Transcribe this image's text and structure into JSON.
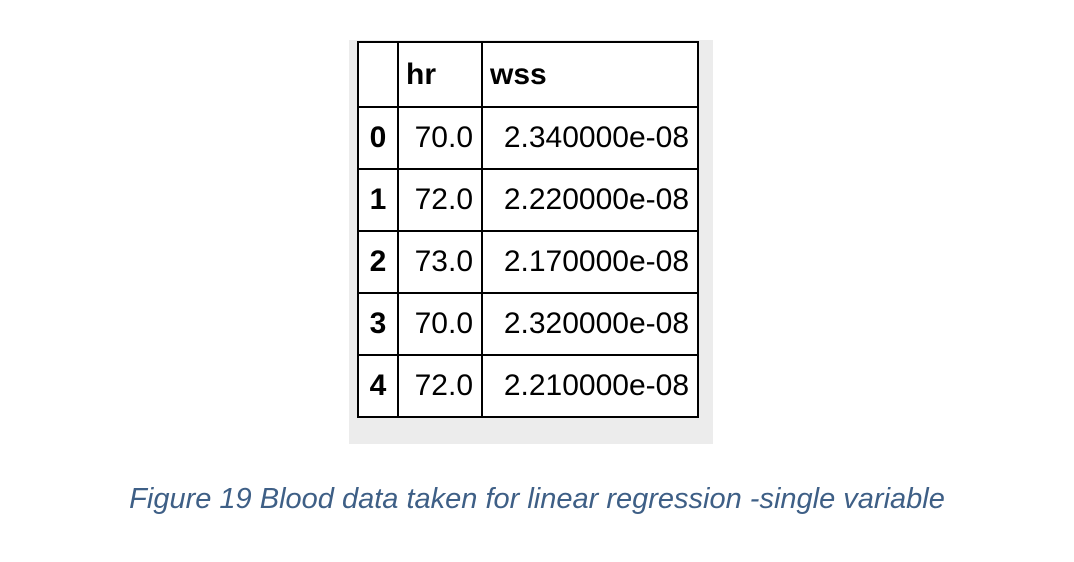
{
  "table": {
    "columns": [
      "",
      "hr",
      "wss"
    ],
    "rows": [
      {
        "index": "0",
        "hr": "70.0",
        "wss": "2.340000e-08"
      },
      {
        "index": "1",
        "hr": "72.0",
        "wss": "2.220000e-08"
      },
      {
        "index": "2",
        "hr": "73.0",
        "wss": "2.170000e-08"
      },
      {
        "index": "3",
        "hr": "70.0",
        "wss": "2.320000e-08"
      },
      {
        "index": "4",
        "hr": "72.0",
        "wss": "2.210000e-08"
      }
    ]
  },
  "caption": "Figure 19 Blood data taken for linear regression -single variable",
  "colors": {
    "caption": "#3e5f86",
    "border": "#000000",
    "shadow": "#ececec"
  }
}
